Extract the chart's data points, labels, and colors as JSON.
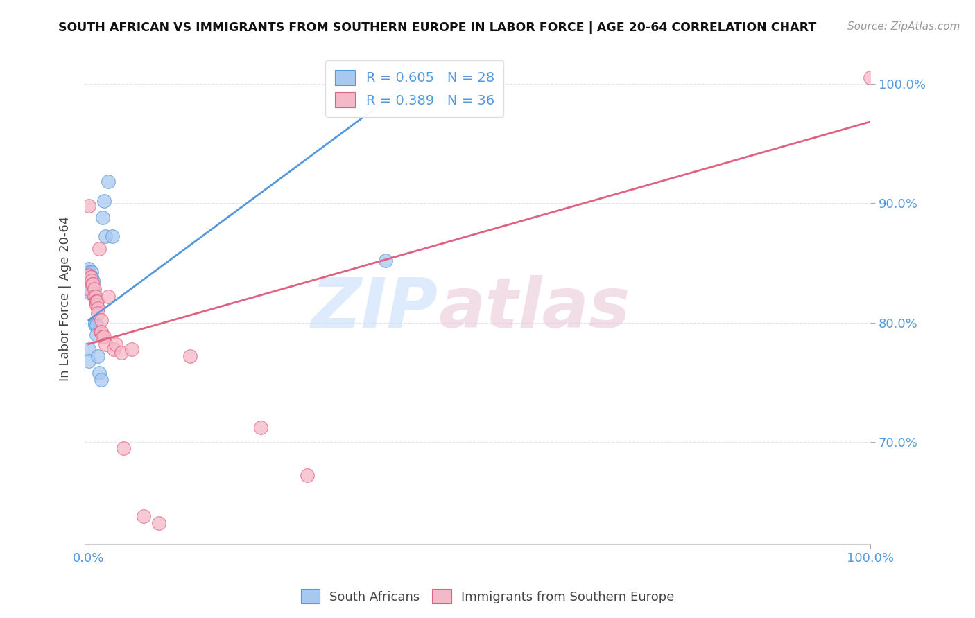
{
  "title": "SOUTH AFRICAN VS IMMIGRANTS FROM SOUTHERN EUROPE IN LABOR FORCE | AGE 20-64 CORRELATION CHART",
  "source": "Source: ZipAtlas.com",
  "ylabel": "In Labor Force | Age 20-64",
  "xlim": [
    -0.005,
    1.0
  ],
  "ylim": [
    0.615,
    1.025
  ],
  "blue_color": "#A8C8F0",
  "pink_color": "#F5B8C8",
  "blue_line_color": "#5599DD",
  "pink_line_color": "#E06080",
  "tick_color": "#5599DD",
  "grid_color": "#E0E4F0",
  "legend_r_blue": "R = 0.605",
  "legend_n_blue": "N = 28",
  "legend_r_pink": "R = 0.389",
  "legend_n_pink": "N = 36",
  "watermark_zip": "ZIP",
  "watermark_atlas": "atlas",
  "blue_points_x": [
    0.0,
    0.0,
    0.0,
    0.0,
    0.0,
    0.0,
    0.0,
    0.0,
    0.0,
    0.0,
    0.003,
    0.004,
    0.004,
    0.006,
    0.006,
    0.008,
    0.008,
    0.01,
    0.01,
    0.012,
    0.014,
    0.016,
    0.018,
    0.02,
    0.022,
    0.025,
    0.03,
    0.38
  ],
  "blue_points_y": [
    0.845,
    0.842,
    0.84,
    0.838,
    0.835,
    0.832,
    0.83,
    0.825,
    0.778,
    0.768,
    0.838,
    0.842,
    0.838,
    0.835,
    0.828,
    0.8,
    0.798,
    0.798,
    0.79,
    0.772,
    0.758,
    0.752,
    0.888,
    0.902,
    0.872,
    0.918,
    0.872,
    0.852
  ],
  "pink_points_x": [
    0.0,
    0.0,
    0.0,
    0.0,
    0.003,
    0.004,
    0.005,
    0.006,
    0.007,
    0.007,
    0.009,
    0.009,
    0.01,
    0.01,
    0.011,
    0.012,
    0.012,
    0.014,
    0.015,
    0.016,
    0.016,
    0.018,
    0.02,
    0.022,
    0.025,
    0.032,
    0.035,
    0.042,
    0.045,
    0.055,
    0.07,
    0.09,
    0.13,
    0.22,
    0.28,
    1.0
  ],
  "pink_points_y": [
    0.835,
    0.84,
    0.828,
    0.898,
    0.838,
    0.835,
    0.832,
    0.832,
    0.828,
    0.822,
    0.822,
    0.818,
    0.818,
    0.815,
    0.818,
    0.812,
    0.808,
    0.862,
    0.792,
    0.802,
    0.792,
    0.788,
    0.788,
    0.782,
    0.822,
    0.778,
    0.782,
    0.775,
    0.695,
    0.778,
    0.638,
    0.632,
    0.772,
    0.712,
    0.672,
    1.005
  ],
  "blue_line_start_x": 0.0,
  "blue_line_start_y": 0.802,
  "blue_line_end_x": 0.42,
  "blue_line_end_y": 1.005,
  "pink_line_start_x": 0.0,
  "pink_line_start_y": 0.782,
  "pink_line_end_x": 1.0,
  "pink_line_end_y": 0.968,
  "x_tick_positions": [
    0.0,
    1.0
  ],
  "x_tick_labels": [
    "0.0%",
    "100.0%"
  ],
  "y_tick_positions": [
    0.7,
    0.8,
    0.9,
    1.0
  ],
  "y_tick_labels": [
    "70.0%",
    "80.0%",
    "90.0%",
    "100.0%"
  ]
}
